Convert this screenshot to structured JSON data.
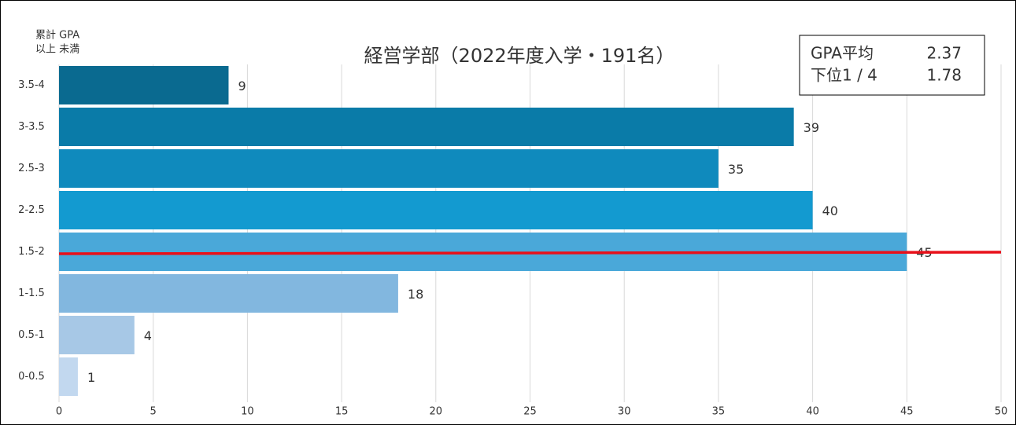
{
  "chart_data": {
    "type": "bar",
    "orientation": "horizontal",
    "title": "経営学部（2022年度入学・191名）",
    "y_label_lines": [
      "累計 GPA",
      "以上  未満"
    ],
    "categories": [
      "3.5-4",
      "3-3.5",
      "2.5-3",
      "2-2.5",
      "1.5-2",
      "1-1.5",
      "0.5-1",
      "0-0.5"
    ],
    "values": [
      9,
      39,
      35,
      40,
      45,
      18,
      4,
      1
    ],
    "colors": [
      "#0a6a90",
      "#0a7ba8",
      "#0f8abd",
      "#139ad0",
      "#4aa8d9",
      "#82b7df",
      "#a7c8e6",
      "#c2d8ef"
    ],
    "xlim": [
      0,
      50
    ],
    "xticks": [
      0,
      5,
      10,
      15,
      20,
      25,
      30,
      35,
      40,
      45,
      50
    ],
    "grid": true,
    "annotations": [
      {
        "label": "GPA平均",
        "value": 2.37
      },
      {
        "label": "下位1 / 4",
        "value": 1.78
      }
    ]
  }
}
